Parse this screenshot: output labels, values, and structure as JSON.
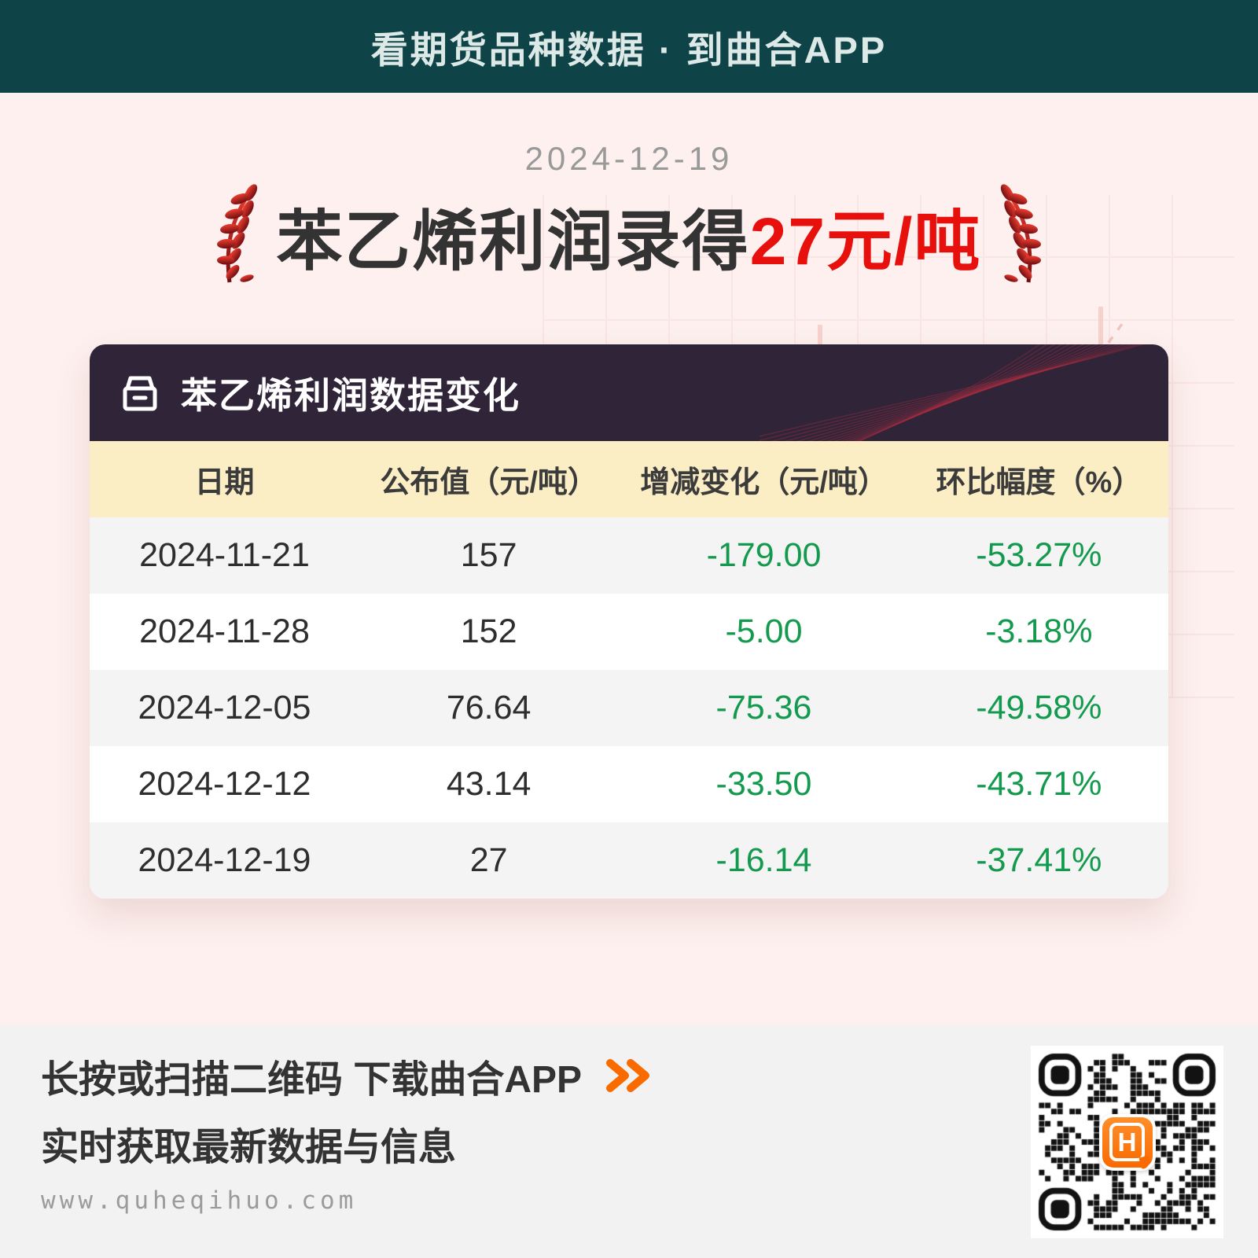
{
  "banner": {
    "title": "看期货品种数据 · 到曲合APP"
  },
  "hero": {
    "date": "2024-12-19",
    "title_prefix": "苯乙烯利润录得",
    "title_highlight": "27元/吨",
    "left_decoration": "wheat-ear-icon",
    "right_decoration": "wheat-ear-icon"
  },
  "card": {
    "title": "苯乙烯利润数据变化",
    "icon": "archive-box-icon"
  },
  "chart_data": {
    "type": "table",
    "title": "苯乙烯利润数据变化",
    "columns": [
      "日期",
      "公布值（元/吨）",
      "增减变化（元/吨）",
      "环比幅度（%）"
    ],
    "rows": [
      [
        "2024-11-21",
        "157",
        "-179.00",
        "-53.27%"
      ],
      [
        "2024-11-28",
        "152",
        "-5.00",
        "-3.18%"
      ],
      [
        "2024-12-05",
        "76.64",
        "-75.36",
        "-49.58%"
      ],
      [
        "2024-12-12",
        "43.14",
        "-33.50",
        "-43.71%"
      ],
      [
        "2024-12-19",
        "27",
        "-16.14",
        "-37.41%"
      ]
    ]
  },
  "footer": {
    "cta_line1": "长按或扫描二维码  下载曲合APP",
    "arrow_icon": "double-chevron-right-icon",
    "cta_line2": "实时获取最新数据与信息",
    "url": "www.quheqihuo.com",
    "qr_logo_letter": "H"
  },
  "colors": {
    "banner_bg": "#0e4347",
    "hero_bg": "#fdf0ee",
    "accent_red": "#e8100c",
    "card_header_bg": "#2f2438",
    "table_header_bg": "#fbeec5",
    "negative_green": "#149a4e",
    "footer_bg": "#f2f2f2",
    "brand_orange": "#f96a00"
  }
}
